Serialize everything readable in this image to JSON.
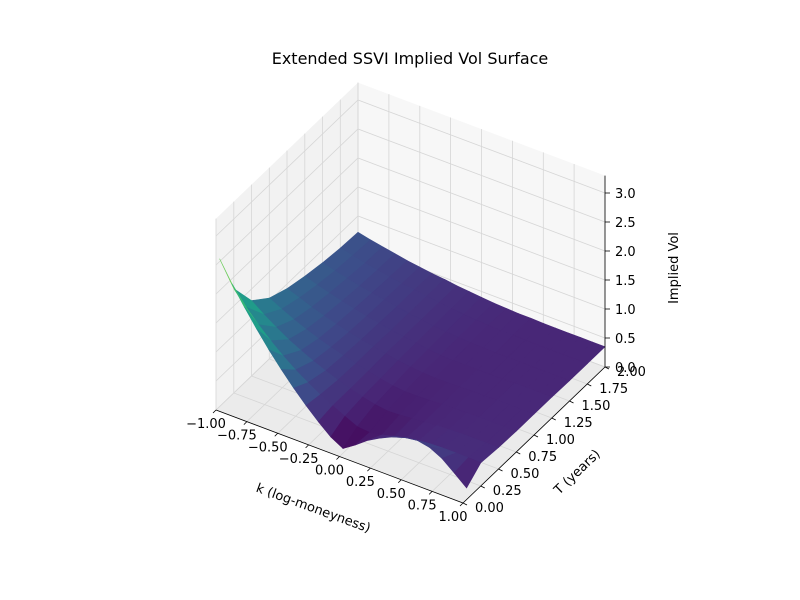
{
  "chart_data": {
    "type": "surface3d",
    "title": "Extended SSVI Implied Vol Surface",
    "xlabel": "k (log-moneyness)",
    "ylabel": "T (years)",
    "zlabel": "Implied Vol",
    "xlim": [
      -1.0,
      1.0
    ],
    "ylim": [
      0.0,
      2.0
    ],
    "zlim": [
      0.0,
      3.0
    ],
    "xticks": [
      "−1.00",
      "−0.75",
      "−0.50",
      "−0.25",
      "0.00",
      "0.25",
      "0.50",
      "0.75",
      "1.00"
    ],
    "yticks": [
      "0.00",
      "0.25",
      "0.50",
      "0.75",
      "1.00",
      "1.25",
      "1.50",
      "1.75",
      "2.00"
    ],
    "zticks": [
      "0.0",
      "0.5",
      "1.0",
      "1.5",
      "2.0",
      "2.5",
      "3.0"
    ],
    "colormap": "viridis",
    "grid": true,
    "k": [
      -1.0,
      -0.9,
      -0.8,
      -0.7,
      -0.6,
      -0.5,
      -0.4,
      -0.3,
      -0.2,
      -0.1,
      0.0,
      0.1,
      0.2,
      0.3,
      0.4,
      0.5,
      0.6,
      0.7,
      0.8,
      0.9,
      1.0
    ],
    "T": [
      0.05,
      0.25,
      0.5,
      0.75,
      1.0,
      1.25,
      1.5,
      1.75,
      2.0
    ],
    "z": [
      [
        2.55,
        2.2,
        1.88,
        1.58,
        1.3,
        1.04,
        0.8,
        0.58,
        0.38,
        0.2,
        0.08,
        0.22,
        0.38,
        0.5,
        0.6,
        0.67,
        0.7,
        0.66,
        0.55,
        0.38,
        0.2
      ],
      [
        1.8,
        1.56,
        1.34,
        1.14,
        0.96,
        0.8,
        0.66,
        0.53,
        0.42,
        0.32,
        0.22,
        0.2,
        0.24,
        0.3,
        0.35,
        0.38,
        0.4,
        0.41,
        0.41,
        0.41,
        0.4
      ],
      [
        1.3,
        1.14,
        1.0,
        0.87,
        0.76,
        0.66,
        0.57,
        0.49,
        0.42,
        0.36,
        0.31,
        0.28,
        0.29,
        0.31,
        0.33,
        0.35,
        0.36,
        0.37,
        0.37,
        0.37,
        0.37
      ],
      [
        1.05,
        0.94,
        0.84,
        0.75,
        0.67,
        0.6,
        0.54,
        0.48,
        0.43,
        0.38,
        0.34,
        0.32,
        0.32,
        0.33,
        0.34,
        0.35,
        0.35,
        0.36,
        0.36,
        0.36,
        0.36
      ],
      [
        0.92,
        0.84,
        0.76,
        0.69,
        0.63,
        0.57,
        0.52,
        0.48,
        0.44,
        0.4,
        0.37,
        0.35,
        0.34,
        0.34,
        0.35,
        0.35,
        0.35,
        0.36,
        0.36,
        0.36,
        0.36
      ],
      [
        0.84,
        0.77,
        0.71,
        0.65,
        0.6,
        0.55,
        0.51,
        0.47,
        0.44,
        0.41,
        0.38,
        0.36,
        0.35,
        0.35,
        0.35,
        0.35,
        0.35,
        0.36,
        0.36,
        0.36,
        0.36
      ],
      [
        0.78,
        0.72,
        0.67,
        0.62,
        0.58,
        0.54,
        0.5,
        0.47,
        0.44,
        0.41,
        0.39,
        0.37,
        0.36,
        0.36,
        0.35,
        0.35,
        0.35,
        0.35,
        0.35,
        0.35,
        0.35
      ],
      [
        0.74,
        0.69,
        0.64,
        0.6,
        0.56,
        0.53,
        0.5,
        0.47,
        0.44,
        0.42,
        0.4,
        0.38,
        0.37,
        0.36,
        0.36,
        0.35,
        0.35,
        0.35,
        0.35,
        0.35,
        0.35
      ],
      [
        0.72,
        0.67,
        0.63,
        0.59,
        0.55,
        0.52,
        0.49,
        0.47,
        0.44,
        0.42,
        0.4,
        0.38,
        0.37,
        0.36,
        0.36,
        0.35,
        0.35,
        0.35,
        0.35,
        0.35,
        0.35
      ]
    ]
  }
}
